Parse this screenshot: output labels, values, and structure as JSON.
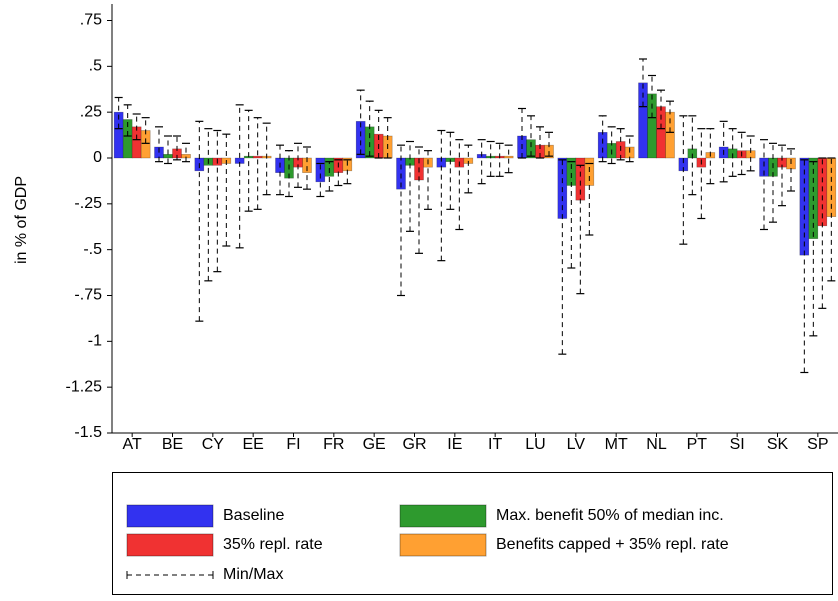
{
  "chart_data": {
    "type": "bar",
    "y_label": "in % of GDP",
    "categories": [
      "AT",
      "BE",
      "CY",
      "EE",
      "FI",
      "FR",
      "GE",
      "GR",
      "IE",
      "IT",
      "LU",
      "LV",
      "MT",
      "NL",
      "PT",
      "SI",
      "SK",
      "SP"
    ],
    "series": [
      {
        "name": "Baseline",
        "color": "#3232f0",
        "values": [
          0.25,
          0.06,
          -0.07,
          -0.03,
          -0.08,
          -0.13,
          0.2,
          -0.17,
          -0.05,
          0.02,
          0.12,
          -0.33,
          0.14,
          0.41,
          -0.07,
          0.06,
          -0.1,
          -0.53
        ],
        "min": [
          0.16,
          -0.02,
          -0.89,
          -0.49,
          -0.2,
          -0.21,
          0.02,
          -0.75,
          -0.56,
          -0.14,
          0,
          -1.07,
          -0.02,
          0.28,
          -0.47,
          -0.13,
          -0.39,
          -1.17
        ],
        "max": [
          0.33,
          0.17,
          0.2,
          0.29,
          0.07,
          -0.03,
          0.37,
          0.07,
          0.15,
          0.1,
          0.27,
          -0.01,
          0.23,
          0.54,
          0.23,
          0.2,
          0.1,
          -0.01
        ]
      },
      {
        "name": "Max. benefit 50% of median inc.",
        "color": "#2e9a2e",
        "values": [
          0.21,
          0.02,
          -0.04,
          0.01,
          -0.11,
          -0.1,
          0.17,
          -0.04,
          -0.02,
          0.01,
          0.1,
          -0.15,
          0.08,
          0.35,
          0.05,
          0.05,
          -0.1,
          -0.44
        ],
        "min": [
          0.12,
          -0.03,
          -0.67,
          -0.29,
          -0.21,
          -0.18,
          0.01,
          -0.4,
          -0.28,
          -0.1,
          0.01,
          -0.6,
          -0.03,
          0.22,
          -0.2,
          -0.1,
          -0.35,
          -0.97
        ],
        "max": [
          0.29,
          0.12,
          0.16,
          0.26,
          0.04,
          -0.02,
          0.31,
          0.09,
          0.14,
          0.09,
          0.23,
          -0.02,
          0.17,
          0.45,
          0.23,
          0.16,
          0.08,
          -0.02
        ]
      },
      {
        "name": "35% repl. rate",
        "color": "#f03232",
        "values": [
          0.17,
          0.05,
          -0.04,
          0.01,
          -0.05,
          -0.08,
          0.13,
          -0.12,
          -0.05,
          0.01,
          0.07,
          -0.23,
          0.09,
          0.28,
          -0.05,
          0.04,
          -0.05,
          -0.37
        ],
        "min": [
          0.1,
          -0.01,
          -0.62,
          -0.28,
          -0.16,
          -0.15,
          0,
          -0.52,
          -0.39,
          -0.1,
          0,
          -0.74,
          -0.01,
          0.16,
          -0.33,
          -0.09,
          -0.26,
          -0.82
        ],
        "max": [
          0.24,
          0.12,
          0.15,
          0.22,
          0.08,
          -0.01,
          0.26,
          0.06,
          0.1,
          0.08,
          0.17,
          -0.04,
          0.16,
          0.37,
          0.16,
          0.14,
          0.07,
          0
        ]
      },
      {
        "name": "Benefits capped + 35% repl. rate",
        "color": "#ffa032",
        "values": [
          0.15,
          0.02,
          -0.03,
          0.01,
          -0.08,
          -0.07,
          0.12,
          -0.05,
          -0.03,
          0.01,
          0.07,
          -0.15,
          0.06,
          0.25,
          0.03,
          0.04,
          -0.06,
          -0.32
        ],
        "min": [
          0.08,
          -0.02,
          -0.48,
          -0.2,
          -0.17,
          -0.14,
          0,
          -0.28,
          -0.19,
          -0.08,
          0.01,
          -0.42,
          -0.02,
          0.14,
          -0.14,
          -0.07,
          -0.18,
          -0.67
        ],
        "max": [
          0.22,
          0.08,
          0.13,
          0.19,
          0.06,
          -0.01,
          0.22,
          0.04,
          0.07,
          0.07,
          0.14,
          -0.03,
          0.12,
          0.31,
          0.16,
          0.12,
          0.05,
          0
        ]
      }
    ],
    "minmax_label": "Min/Max",
    "ylim": [
      -1.5,
      0.84
    ],
    "yticks": [
      {
        "value": 0.75,
        "label": ".75"
      },
      {
        "value": 0.5,
        "label": ".5"
      },
      {
        "value": 0.25,
        "label": ".25"
      },
      0,
      {
        "value": -0.25,
        "label": "-.25"
      },
      {
        "value": -0.5,
        "label": "-.5"
      },
      {
        "value": -0.75,
        "label": "-.75"
      },
      -1,
      {
        "value": -1.25,
        "label": "-1.25"
      },
      {
        "value": -1.5,
        "label": "-1.5"
      }
    ],
    "legend_position": "bottom"
  }
}
